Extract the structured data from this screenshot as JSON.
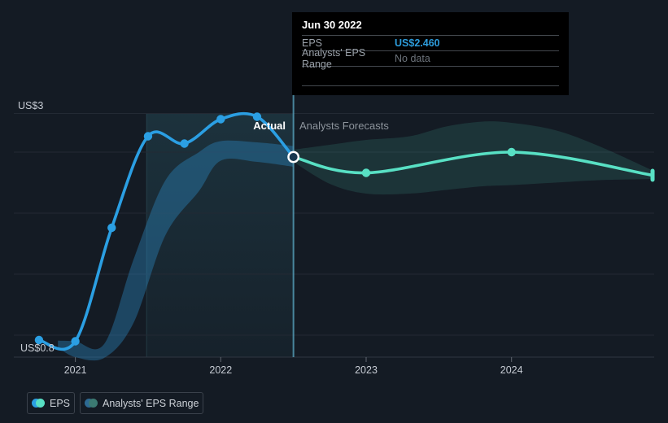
{
  "tooltip": {
    "title": "Jun 30 2022",
    "rows": [
      {
        "label": "EPS",
        "value": "US$2.460",
        "value_color": "#2d9cdb"
      },
      {
        "label": "Analysts' EPS Range",
        "value": "No data",
        "value_color": "#6c737b"
      }
    ]
  },
  "legend": {
    "items": [
      {
        "label": "EPS",
        "colors": [
          "#2b9fe3",
          "#58e0c4"
        ]
      },
      {
        "label": "Analysts' EPS Range",
        "colors": [
          "#2d6a93",
          "#3b7a72"
        ]
      }
    ]
  },
  "chart_data": {
    "type": "line",
    "title": "",
    "x_ticks": [
      {
        "label": "2021",
        "year": 2021
      },
      {
        "label": "2022",
        "year": 2022
      },
      {
        "label": "2023",
        "year": 2023
      },
      {
        "label": "2024",
        "year": 2024
      }
    ],
    "y_axis": {
      "top_label": "US$3",
      "bottom_label": "US$0.8",
      "top_value": 3.0,
      "bottom_value": 0.8,
      "unit": "US$"
    },
    "y_gridlines": [
      2.5,
      2.0,
      1.5,
      1.0
    ],
    "annotations": {
      "actual": "Actual",
      "forecasts": "Analysts Forecasts"
    },
    "divider_year": 2022.5,
    "highlight_span": [
      2021.49,
      2022.5
    ],
    "selected_point": {
      "x": 2022.5,
      "v": 2.46,
      "date": "Jun 30 2022"
    },
    "series": [
      {
        "name": "EPS",
        "color": "#2b9fe3",
        "width": 3.6,
        "points": [
          {
            "x": 2020.75,
            "v": 0.96,
            "dot": true
          },
          {
            "x": 2021.0,
            "v": 0.95,
            "dot": true
          },
          {
            "x": 2021.25,
            "v": 1.88,
            "dot": true
          },
          {
            "x": 2021.5,
            "v": 2.63,
            "dot": true
          },
          {
            "x": 2021.75,
            "v": 2.57,
            "dot": true
          },
          {
            "x": 2022.0,
            "v": 2.77,
            "dot": true
          },
          {
            "x": 2022.25,
            "v": 2.79,
            "dot": true
          },
          {
            "x": 2022.5,
            "v": 2.46,
            "dot": false
          }
        ]
      },
      {
        "name": "EPS forecast",
        "color": "#58e0c4",
        "width": 3.6,
        "points": [
          {
            "x": 2022.5,
            "v": 2.46,
            "dot": false
          },
          {
            "x": 2023.0,
            "v": 2.33,
            "dot": true
          },
          {
            "x": 2024.0,
            "v": 2.5,
            "dot": true
          },
          {
            "x": 2024.97,
            "v": 2.31,
            "dot": false,
            "endcap": true
          }
        ]
      }
    ],
    "bands": [
      {
        "name": "Analysts' EPS Range (history)",
        "color": "rgba(43,130,185,0.42)",
        "points": [
          {
            "x": 2020.88,
            "low": 0.9,
            "high": 0.955
          },
          {
            "x": 2021.0,
            "low": 0.82,
            "high": 0.95
          },
          {
            "x": 2021.2,
            "low": 0.815,
            "high": 0.93
          },
          {
            "x": 2021.4,
            "low": 1.1,
            "high": 1.62
          },
          {
            "x": 2021.62,
            "low": 1.82,
            "high": 2.27
          },
          {
            "x": 2021.85,
            "low": 2.18,
            "high": 2.5
          },
          {
            "x": 2022.0,
            "low": 2.43,
            "high": 2.59
          },
          {
            "x": 2022.25,
            "low": 2.42,
            "high": 2.58
          },
          {
            "x": 2022.5,
            "low": 2.38,
            "high": 2.55
          }
        ]
      },
      {
        "name": "Analysts' EPS Range (forecast)",
        "color": "rgba(88,224,196,0.13)",
        "points": [
          {
            "x": 2022.5,
            "low": 2.42,
            "high": 2.52
          },
          {
            "x": 2022.75,
            "low": 2.24,
            "high": 2.56
          },
          {
            "x": 2023.0,
            "low": 2.16,
            "high": 2.6
          },
          {
            "x": 2023.3,
            "low": 2.16,
            "high": 2.63
          },
          {
            "x": 2023.55,
            "low": 2.19,
            "high": 2.71
          },
          {
            "x": 2023.8,
            "low": 2.22,
            "high": 2.75
          },
          {
            "x": 2024.0,
            "low": 2.23,
            "high": 2.74
          },
          {
            "x": 2024.3,
            "low": 2.25,
            "high": 2.68
          },
          {
            "x": 2024.6,
            "low": 2.27,
            "high": 2.55
          },
          {
            "x": 2024.97,
            "low": 2.28,
            "high": 2.35
          }
        ]
      }
    ]
  },
  "colors": {
    "background": "#141b24",
    "grid": "#232a34",
    "axis_line": "#2f3742",
    "tick": "#5f666f",
    "divider": "#5aa9c4",
    "highlight_top": "rgba(77,190,212,0.14)",
    "highlight_bottom": "rgba(77,190,212,0.04)",
    "marker_fill": "#17384e",
    "marker_ring": "#ffffff"
  }
}
